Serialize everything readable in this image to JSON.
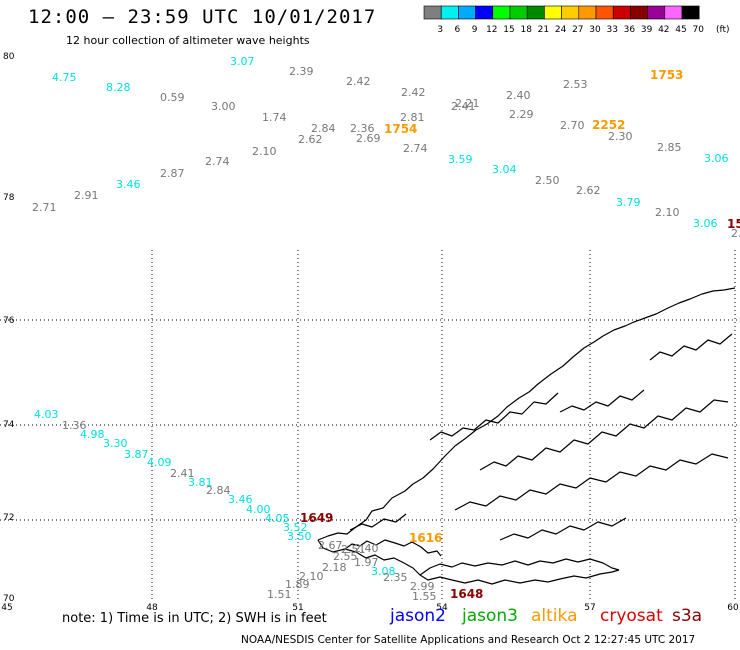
{
  "header": {
    "title": "12:00 – 23:59 UTC 10/01/2017",
    "subtitle": "12 hour collection of altimeter wave heights"
  },
  "legend": {
    "unit": "(ft)",
    "bins": [
      {
        "label": "3",
        "color": "#7f7f7f"
      },
      {
        "label": "6",
        "color": "#00f0f0"
      },
      {
        "label": "9",
        "color": "#00aaff"
      },
      {
        "label": "12",
        "color": "#0000ff"
      },
      {
        "label": "15",
        "color": "#00ff00"
      },
      {
        "label": "18",
        "color": "#00cc00"
      },
      {
        "label": "21",
        "color": "#008800"
      },
      {
        "label": "24",
        "color": "#ffff00"
      },
      {
        "label": "27",
        "color": "#ffcc00"
      },
      {
        "label": "30",
        "color": "#ff9900"
      },
      {
        "label": "33",
        "color": "#ff5500"
      },
      {
        "label": "36",
        "color": "#cc0000"
      },
      {
        "label": "39",
        "color": "#880000"
      },
      {
        "label": "42",
        "color": "#990099"
      },
      {
        "label": "45",
        "color": "#ff66ff"
      },
      {
        "label": "70",
        "color": "#000000"
      }
    ]
  },
  "axes": {
    "lon_labels": [
      "45",
      "48",
      "51",
      "54",
      "57",
      "60"
    ],
    "lat_labels": [
      "80",
      "78",
      "76",
      "74",
      "72",
      "70"
    ]
  },
  "readings": [
    {
      "text": "3.07",
      "color": "cyan"
    },
    {
      "text": "2.39",
      "color": "grey"
    },
    {
      "text": "4.75",
      "color": "cyan"
    },
    {
      "text": "2.42",
      "color": "grey"
    },
    {
      "text": "2.53",
      "color": "grey"
    },
    {
      "text": "1753",
      "color": "orange"
    },
    {
      "text": "8.28",
      "color": "cyan"
    },
    {
      "text": "2.42",
      "color": "grey"
    },
    {
      "text": "0.59",
      "color": "grey"
    },
    {
      "text": "2.40",
      "color": "grey"
    },
    {
      "text": "2.21",
      "color": "grey"
    },
    {
      "text": "2.41",
      "color": "grey"
    },
    {
      "text": "3.00",
      "color": "grey"
    },
    {
      "text": "2.81",
      "color": "grey"
    },
    {
      "text": "2.29",
      "color": "grey"
    },
    {
      "text": "1.74",
      "color": "grey"
    },
    {
      "text": "2.84",
      "color": "grey"
    },
    {
      "text": "2.36",
      "color": "grey"
    },
    {
      "text": "1754",
      "color": "orange"
    },
    {
      "text": "2.70",
      "color": "grey"
    },
    {
      "text": "2252",
      "color": "orange"
    },
    {
      "text": "2.62",
      "color": "grey"
    },
    {
      "text": "2.69",
      "color": "grey"
    },
    {
      "text": "2.30",
      "color": "grey"
    },
    {
      "text": "2.10",
      "color": "grey"
    },
    {
      "text": "2.74",
      "color": "grey"
    },
    {
      "text": "2.85",
      "color": "grey"
    },
    {
      "text": "2.74",
      "color": "grey"
    },
    {
      "text": "3.59",
      "color": "cyan"
    },
    {
      "text": "3.06",
      "color": "cyan"
    },
    {
      "text": "2.87",
      "color": "grey"
    },
    {
      "text": "3.04",
      "color": "cyan"
    },
    {
      "text": "3.46",
      "color": "cyan"
    },
    {
      "text": "2.50",
      "color": "grey"
    },
    {
      "text": "2.91",
      "color": "grey"
    },
    {
      "text": "2.62",
      "color": "grey"
    },
    {
      "text": "2.71",
      "color": "grey"
    },
    {
      "text": "3.79",
      "color": "cyan"
    },
    {
      "text": "2.10",
      "color": "grey"
    },
    {
      "text": "3.06",
      "color": "cyan"
    },
    {
      "text": "15",
      "color": "darkred"
    },
    {
      "text": "2.",
      "color": "grey"
    },
    {
      "text": "4.03",
      "color": "cyan"
    },
    {
      "text": "1.36",
      "color": "grey"
    },
    {
      "text": "4.98",
      "color": "cyan"
    },
    {
      "text": "3.30",
      "color": "cyan"
    },
    {
      "text": "3.87",
      "color": "cyan"
    },
    {
      "text": "4.09",
      "color": "cyan"
    },
    {
      "text": "2.41",
      "color": "grey"
    },
    {
      "text": "3.81",
      "color": "cyan"
    },
    {
      "text": "2.84",
      "color": "grey"
    },
    {
      "text": "3.46",
      "color": "cyan"
    },
    {
      "text": "4.00",
      "color": "cyan"
    },
    {
      "text": "4.05",
      "color": "cyan"
    },
    {
      "text": "1649",
      "color": "darkred"
    },
    {
      "text": "3.52",
      "color": "cyan"
    },
    {
      "text": "3.50",
      "color": "cyan"
    },
    {
      "text": "2.67",
      "color": "grey"
    },
    {
      "text": "1616",
      "color": "orange"
    },
    {
      "text": "2.51",
      "color": "grey"
    },
    {
      "text": "2.40",
      "color": "grey"
    },
    {
      "text": "2.55",
      "color": "grey"
    },
    {
      "text": "2.18",
      "color": "grey"
    },
    {
      "text": "1.97",
      "color": "grey"
    },
    {
      "text": "3.08",
      "color": "cyan"
    },
    {
      "text": "2.10",
      "color": "grey"
    },
    {
      "text": "2.35",
      "color": "grey"
    },
    {
      "text": "1.89",
      "color": "grey"
    },
    {
      "text": "2.99",
      "color": "grey"
    },
    {
      "text": "1.51",
      "color": "grey"
    },
    {
      "text": "1.55",
      "color": "grey"
    },
    {
      "text": "1648",
      "color": "darkred"
    }
  ],
  "colors": {
    "cyan": "#00e0e0",
    "grey": "#777777",
    "orange": "#ff9900",
    "darkred": "#880000",
    "jason2": "#0000ff",
    "jason3": "#00aa00",
    "altika": "#ff9900",
    "cryosat": "#dd0000",
    "s3a": "#880000"
  },
  "footer": {
    "note": "note: 1) Time is in UTC; 2) SWH is in feet",
    "satellites": [
      "jason2",
      "jason3",
      "altika",
      "cryosat",
      "s3a"
    ],
    "credit": "NOAA/NESDIS Center for Satellite Applications and Research   Oct 2 12:27:45 UTC 2017"
  }
}
